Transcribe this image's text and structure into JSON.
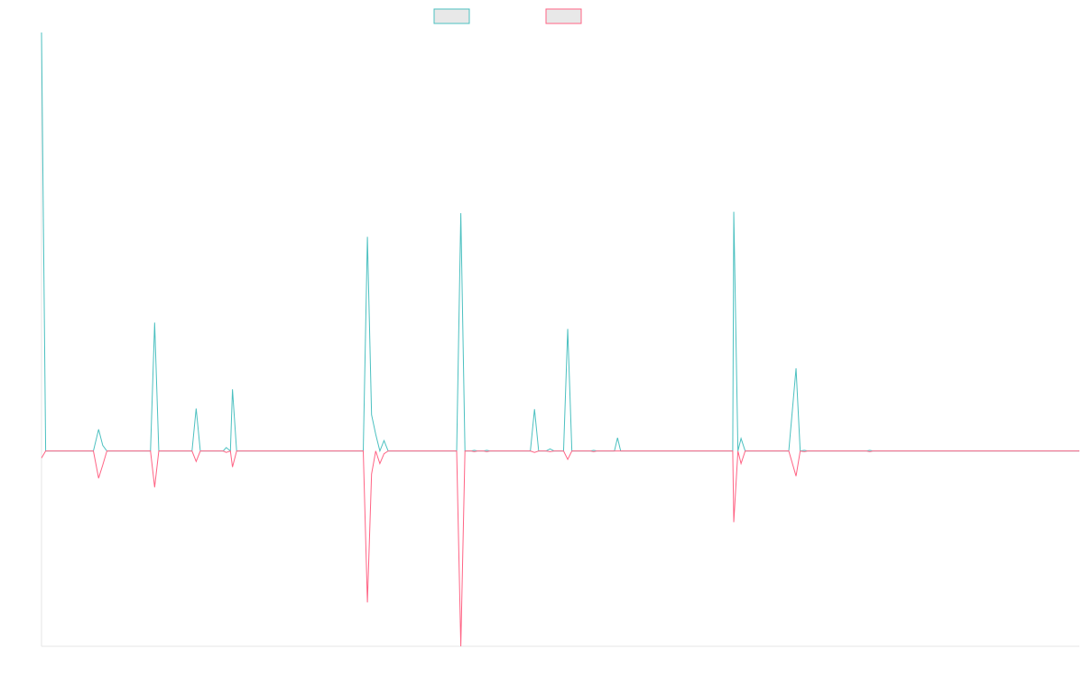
{
  "chart_data": {
    "type": "line",
    "title": "",
    "xlabel": "",
    "ylabel": "",
    "grid": false,
    "legend": "top-center",
    "x_range": [
      0,
      1000
    ],
    "ylim": [
      -560,
      1200
    ],
    "series": [
      {
        "color": "#4bc0c0",
        "legend_fill": "#e8e8e8",
        "points": [
          [
            0,
            1200
          ],
          [
            4,
            0
          ],
          [
            50,
            0
          ],
          [
            55,
            62
          ],
          [
            59,
            16
          ],
          [
            63,
            0
          ],
          [
            105,
            0
          ],
          [
            109,
            368
          ],
          [
            113,
            0
          ],
          [
            145,
            0
          ],
          [
            149,
            122
          ],
          [
            153,
            0
          ],
          [
            175,
            0
          ],
          [
            178,
            10
          ],
          [
            182,
            0
          ],
          [
            184,
            177
          ],
          [
            188,
            0
          ],
          [
            310,
            0
          ],
          [
            314,
            614
          ],
          [
            318,
            104
          ],
          [
            322,
            48
          ],
          [
            326,
            0
          ],
          [
            330,
            30
          ],
          [
            334,
            0
          ],
          [
            400,
            0
          ],
          [
            404,
            682
          ],
          [
            408,
            0
          ],
          [
            414,
            0
          ],
          [
            417,
            2
          ],
          [
            420,
            0
          ],
          [
            426,
            0
          ],
          [
            429,
            2
          ],
          [
            432,
            0
          ],
          [
            471,
            0
          ],
          [
            475,
            120
          ],
          [
            479,
            0
          ],
          [
            486,
            0
          ],
          [
            490,
            6
          ],
          [
            494,
            0
          ],
          [
            503,
            0
          ],
          [
            507,
            350
          ],
          [
            511,
            0
          ],
          [
            529,
            0
          ],
          [
            532,
            2
          ],
          [
            535,
            0
          ],
          [
            552,
            0
          ],
          [
            555,
            38
          ],
          [
            558,
            0
          ],
          [
            666,
            0
          ],
          [
            667,
            686
          ],
          [
            671,
            0
          ],
          [
            674,
            36
          ],
          [
            678,
            0
          ],
          [
            720,
            0
          ],
          [
            727,
            237
          ],
          [
            731,
            0
          ],
          [
            735,
            2
          ],
          [
            738,
            0
          ],
          [
            795,
            0
          ],
          [
            798,
            2
          ],
          [
            801,
            0
          ],
          [
            1000,
            0
          ]
        ]
      },
      {
        "color": "#ff6384",
        "legend_fill": "#e8e8e8",
        "points": [
          [
            0,
            -20
          ],
          [
            4,
            0
          ],
          [
            50,
            0
          ],
          [
            55,
            -78
          ],
          [
            59,
            -40
          ],
          [
            63,
            0
          ],
          [
            105,
            0
          ],
          [
            109,
            -104
          ],
          [
            113,
            0
          ],
          [
            145,
            0
          ],
          [
            149,
            -30
          ],
          [
            153,
            0
          ],
          [
            175,
            0
          ],
          [
            178,
            -4
          ],
          [
            182,
            0
          ],
          [
            184,
            -46
          ],
          [
            188,
            0
          ],
          [
            310,
            0
          ],
          [
            314,
            -434
          ],
          [
            318,
            -66
          ],
          [
            322,
            0
          ],
          [
            326,
            -36
          ],
          [
            330,
            -8
          ],
          [
            334,
            0
          ],
          [
            400,
            0
          ],
          [
            404,
            -560
          ],
          [
            408,
            0
          ],
          [
            414,
            0
          ],
          [
            417,
            -2
          ],
          [
            420,
            0
          ],
          [
            426,
            0
          ],
          [
            429,
            -2
          ],
          [
            432,
            0
          ],
          [
            471,
            0
          ],
          [
            475,
            -4
          ],
          [
            479,
            0
          ],
          [
            486,
            0
          ],
          [
            490,
            -2
          ],
          [
            494,
            0
          ],
          [
            503,
            0
          ],
          [
            507,
            -24
          ],
          [
            511,
            0
          ],
          [
            529,
            0
          ],
          [
            532,
            -2
          ],
          [
            535,
            0
          ],
          [
            552,
            0
          ],
          [
            555,
            0
          ],
          [
            558,
            0
          ],
          [
            666,
            0
          ],
          [
            667,
            -204
          ],
          [
            671,
            0
          ],
          [
            674,
            -36
          ],
          [
            678,
            0
          ],
          [
            720,
            0
          ],
          [
            727,
            -72
          ],
          [
            731,
            0
          ],
          [
            735,
            -2
          ],
          [
            738,
            0
          ],
          [
            795,
            0
          ],
          [
            798,
            -2
          ],
          [
            801,
            0
          ],
          [
            1000,
            0
          ]
        ]
      }
    ]
  }
}
